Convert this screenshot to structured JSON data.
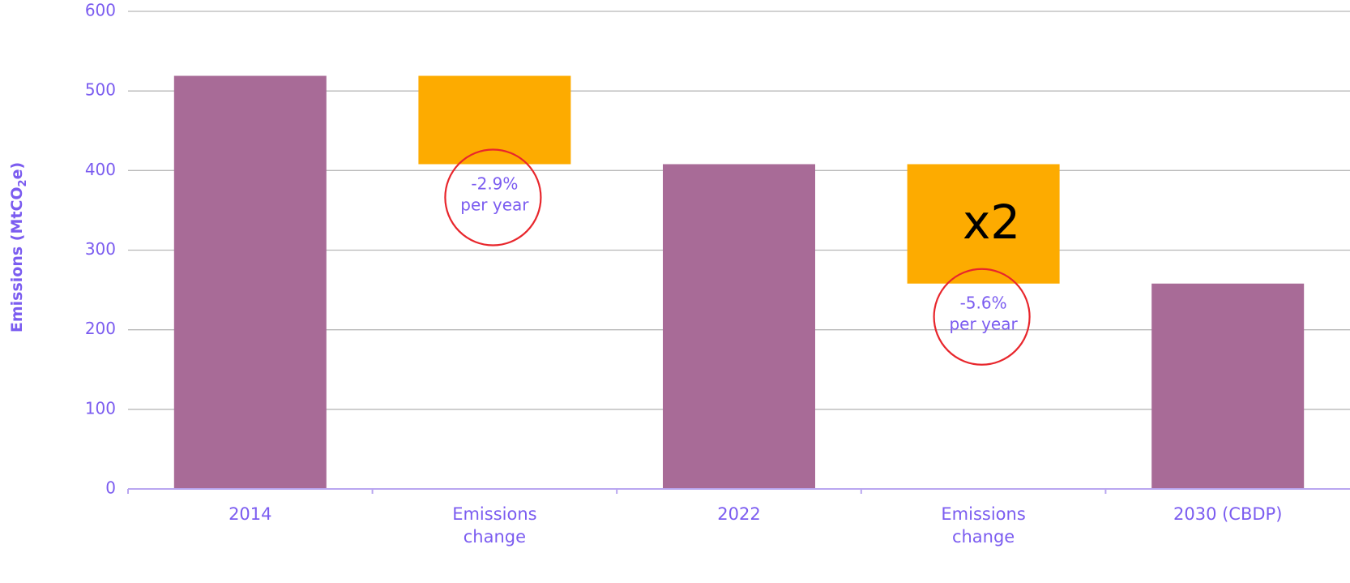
{
  "chart_data": {
    "type": "bar",
    "subtype": "waterfall",
    "categories": [
      "2014",
      "Emissions change",
      "2022",
      "Emissions change",
      "2030 (CBDP)"
    ],
    "category_lines": [
      [
        "2014"
      ],
      [
        "Emissions",
        "change"
      ],
      [
        "2022"
      ],
      [
        "Emissions",
        "change"
      ],
      [
        "2030 (CBDP)"
      ]
    ],
    "bars": [
      {
        "category": "2014",
        "kind": "total",
        "base": 0,
        "top": 519
      },
      {
        "category": "Emissions change",
        "kind": "decrease",
        "base": 408,
        "top": 519
      },
      {
        "category": "2022",
        "kind": "total",
        "base": 0,
        "top": 408
      },
      {
        "category": "Emissions change",
        "kind": "decrease",
        "base": 258,
        "top": 408
      },
      {
        "category": "2030 (CBDP)",
        "kind": "total",
        "base": 0,
        "top": 258
      }
    ],
    "ylabel": "Emissions (MtCO2e)",
    "ylabel_parts": {
      "main": "Emissions (MtCO",
      "subscript": "2",
      "suffix": "e)"
    },
    "ylim": [
      0,
      600
    ],
    "yticks": [
      0,
      100,
      200,
      300,
      400,
      500,
      600
    ],
    "grid": true,
    "legend": "none",
    "annotations": [
      {
        "bar_index": 1,
        "lines": [
          "-2.9%",
          "per year"
        ],
        "circled": true
      },
      {
        "bar_index": 3,
        "lines": [
          "-5.6%",
          "per year"
        ],
        "circled": true
      },
      {
        "bar_index": 3,
        "text": "x2",
        "kind": "multiplier"
      }
    ],
    "colors": {
      "total": "#a86b97",
      "change": "#fdab00",
      "grid": "#b8b8b8",
      "axis": "#b9a6f0",
      "text": "#7b5cf0",
      "circle": "#e8262c"
    }
  }
}
